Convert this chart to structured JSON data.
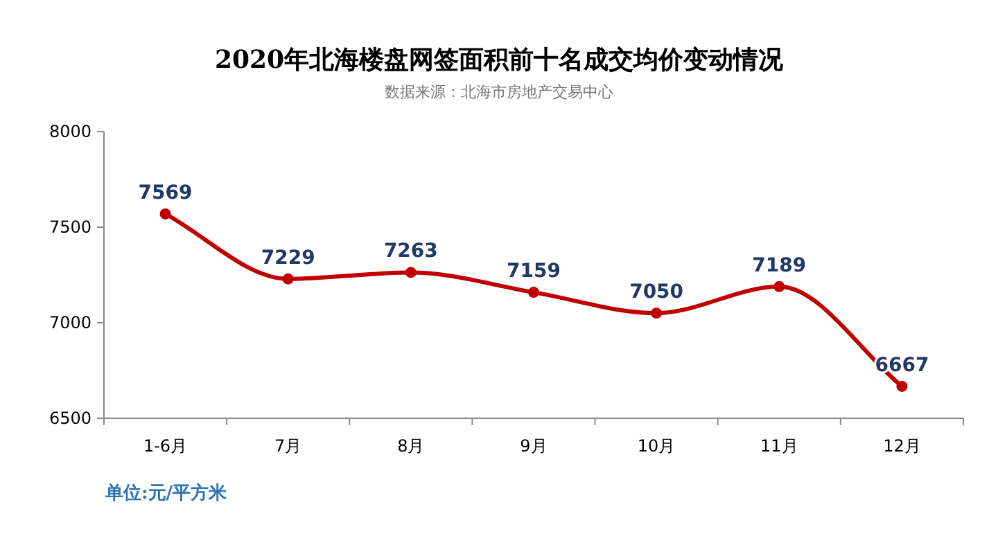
{
  "chart_data": {
    "type": "line",
    "title": "2020年北海楼盘网签面积前十名成交均价变动情况",
    "subtitle": "数据来源：北海市房地产交易中心",
    "categories": [
      "1-6月",
      "7月",
      "8月",
      "9月",
      "10月",
      "11月",
      "12月"
    ],
    "series": [
      {
        "color": "#c00000",
        "values": [
          7569,
          7229,
          7263,
          7159,
          7050,
          7189,
          6667
        ]
      }
    ],
    "ylim": [
      6500,
      8000
    ],
    "yticks": [
      6500,
      7000,
      7500,
      8000
    ],
    "data_labels": true,
    "marker": "circle",
    "grid": false,
    "annotations": [
      "单位:元/平方米"
    ]
  }
}
